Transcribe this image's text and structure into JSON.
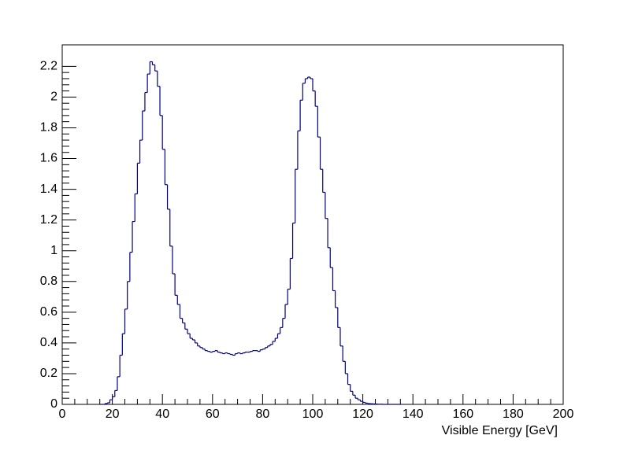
{
  "chart_data": {
    "type": "histogram",
    "x_label": "Visible Energy [GeV]",
    "bins": [
      15,
      16,
      17,
      18,
      19,
      20,
      21,
      22,
      23,
      24,
      25,
      26,
      27,
      28,
      29,
      30,
      31,
      32,
      33,
      34,
      35,
      36,
      37,
      38,
      39,
      40,
      41,
      42,
      43,
      44,
      45,
      46,
      47,
      48,
      49,
      50,
      51,
      52,
      53,
      54,
      55,
      56,
      57,
      58,
      59,
      60,
      61,
      62,
      63,
      64,
      65,
      66,
      67,
      68,
      69,
      70,
      71,
      72,
      73,
      74,
      75,
      76,
      77,
      78,
      79,
      80,
      81,
      82,
      83,
      84,
      85,
      86,
      87,
      88,
      89,
      90,
      91,
      92,
      93,
      94,
      95,
      96,
      97,
      98,
      99,
      100,
      101,
      102,
      103,
      104,
      105,
      106,
      107,
      108,
      109,
      110,
      111,
      112,
      113,
      114,
      115,
      116,
      117,
      118,
      119,
      120,
      121,
      122,
      123,
      124,
      125,
      126,
      127,
      128,
      129,
      130,
      131,
      132,
      133,
      134,
      135
    ],
    "values": [
      0,
      0,
      0.005,
      0.01,
      0.03,
      0.05,
      0.09,
      0.18,
      0.32,
      0.46,
      0.62,
      0.8,
      0.99,
      1.19,
      1.37,
      1.57,
      1.72,
      1.91,
      2.03,
      2.15,
      2.23,
      2.21,
      2.17,
      2.07,
      1.88,
      1.66,
      1.43,
      1.27,
      1.03,
      0.85,
      0.71,
      0.65,
      0.56,
      0.53,
      0.49,
      0.46,
      0.43,
      0.42,
      0.4,
      0.38,
      0.37,
      0.36,
      0.35,
      0.345,
      0.34,
      0.345,
      0.35,
      0.34,
      0.335,
      0.33,
      0.335,
      0.33,
      0.325,
      0.32,
      0.33,
      0.335,
      0.33,
      0.335,
      0.34,
      0.34,
      0.345,
      0.35,
      0.35,
      0.345,
      0.355,
      0.36,
      0.37,
      0.38,
      0.39,
      0.41,
      0.43,
      0.46,
      0.5,
      0.56,
      0.65,
      0.75,
      0.95,
      1.18,
      1.53,
      1.78,
      1.98,
      2.09,
      2.12,
      2.13,
      2.12,
      2.04,
      1.94,
      1.74,
      1.53,
      1.38,
      1.21,
      1.02,
      0.89,
      0.74,
      0.63,
      0.5,
      0.38,
      0.28,
      0.2,
      0.13,
      0.085,
      0.06,
      0.04,
      0.03,
      0.02,
      0.013,
      0.008,
      0.005,
      0.004,
      0.003,
      0.002,
      0.001,
      0.001,
      0,
      0,
      0,
      0,
      0,
      0,
      0
    ],
    "color": "#000080",
    "xlim": [
      0,
      200
    ],
    "xticks": [
      0,
      20,
      40,
      60,
      80,
      100,
      120,
      140,
      160,
      180,
      200
    ],
    "ylim": [
      0,
      2.34
    ],
    "yticks": [
      0,
      0.2,
      0.4,
      0.6,
      0.8,
      1,
      1.2,
      1.4,
      1.6,
      1.8,
      2,
      2.2
    ]
  }
}
